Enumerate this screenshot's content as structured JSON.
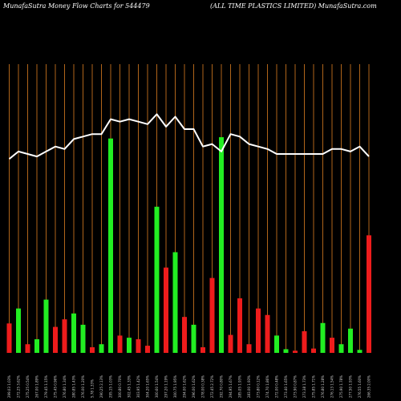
{
  "header": {
    "left": "MunafaSutra  Money Flow  Charts for 544479",
    "right": "(ALL  TIME PLASTICS LIMITED) MunafaSutra.com"
  },
  "colors": {
    "background": "#000000",
    "grid": "#b0651a",
    "up": "#22ee22",
    "down": "#ee1c1c",
    "line": "#ffffff"
  },
  "chart_data": {
    "type": "bar",
    "ylim": [
      0,
      100
    ],
    "line_ylim": [
      0,
      100
    ],
    "categories": [
      "299.03 1.03%",
      "272.25 3.62%",
      "275.25 0.54%",
      "267.00 1.89%",
      "279.45 1.15%",
      "275.45 0.96%",
      "276.80 1.34%",
      "280.85 1.43%",
      "276.00 1.20%",
      "5.78 1.33%",
      "290.25 2.13%",
      "295.15 1.03%",
      "300.80 0.70%",
      "302.45 1.33%",
      "303.95 1.42%",
      "304.20 1.65%",
      "300.60 1.54%",
      "297.20 1.19%",
      "300.75 1.95%",
      "294.00 1.62%",
      "296.00 1.62%",
      "278.00 0.38%",
      "272.45 2.72%",
      "292.70 0.80%",
      "294.95 1.67%",
      "285.05 1.93%",
      "283.00 1.93%",
      "273.80 0.12%",
      "274.70 1.86%",
      "272.00 0.48%",
      "273.40 1.65%",
      "273.90 0.87%",
      "273.38 1.73%",
      "275.85 1.71%",
      "276.80 1.28%",
      "276.13 1.54%",
      "275.90 1.78%",
      "277.50 1.93%",
      "276.55 1.60%",
      "266.35 2.00%"
    ],
    "bars": [
      {
        "value": 13.6,
        "dir": "down"
      },
      {
        "value": 20.5,
        "dir": "up"
      },
      {
        "value": 4.0,
        "dir": "down"
      },
      {
        "value": 6.3,
        "dir": "up"
      },
      {
        "value": 24.6,
        "dir": "up"
      },
      {
        "value": 12.0,
        "dir": "down"
      },
      {
        "value": 15.5,
        "dir": "down"
      },
      {
        "value": 18.2,
        "dir": "up"
      },
      {
        "value": 13.0,
        "dir": "up"
      },
      {
        "value": 2.6,
        "dir": "down"
      },
      {
        "value": 4.0,
        "dir": "up"
      },
      {
        "value": 99.0,
        "dir": "up"
      },
      {
        "value": 8.0,
        "dir": "down"
      },
      {
        "value": 7.0,
        "dir": "up"
      },
      {
        "value": 6.3,
        "dir": "down"
      },
      {
        "value": 3.3,
        "dir": "down"
      },
      {
        "value": 67.5,
        "dir": "up"
      },
      {
        "value": 39.4,
        "dir": "down"
      },
      {
        "value": 46.5,
        "dir": "up"
      },
      {
        "value": 16.6,
        "dir": "down"
      },
      {
        "value": 13.0,
        "dir": "up"
      },
      {
        "value": 2.6,
        "dir": "down"
      },
      {
        "value": 34.6,
        "dir": "down"
      },
      {
        "value": 99.6,
        "dir": "up"
      },
      {
        "value": 8.3,
        "dir": "down"
      },
      {
        "value": 25.2,
        "dir": "down"
      },
      {
        "value": 4.0,
        "dir": "down"
      },
      {
        "value": 20.5,
        "dir": "down"
      },
      {
        "value": 17.5,
        "dir": "down"
      },
      {
        "value": 8.0,
        "dir": "up"
      },
      {
        "value": 1.7,
        "dir": "up"
      },
      {
        "value": 1.0,
        "dir": "down"
      },
      {
        "value": 10.0,
        "dir": "down"
      },
      {
        "value": 2.0,
        "dir": "down"
      },
      {
        "value": 13.8,
        "dir": "up"
      },
      {
        "value": 7.0,
        "dir": "down"
      },
      {
        "value": 4.0,
        "dir": "up"
      },
      {
        "value": 11.2,
        "dir": "up"
      },
      {
        "value": 1.4,
        "dir": "up"
      },
      {
        "value": 54.3,
        "dir": "down"
      }
    ],
    "line": [
      78,
      81,
      80,
      79,
      81,
      83,
      82,
      86,
      87,
      88,
      88,
      94,
      93,
      94,
      93,
      92,
      96,
      91,
      95,
      90,
      90,
      83,
      84,
      81,
      88,
      87,
      84,
      83,
      82,
      80,
      80,
      80,
      80,
      80,
      80,
      82,
      82,
      81,
      83,
      79
    ]
  }
}
